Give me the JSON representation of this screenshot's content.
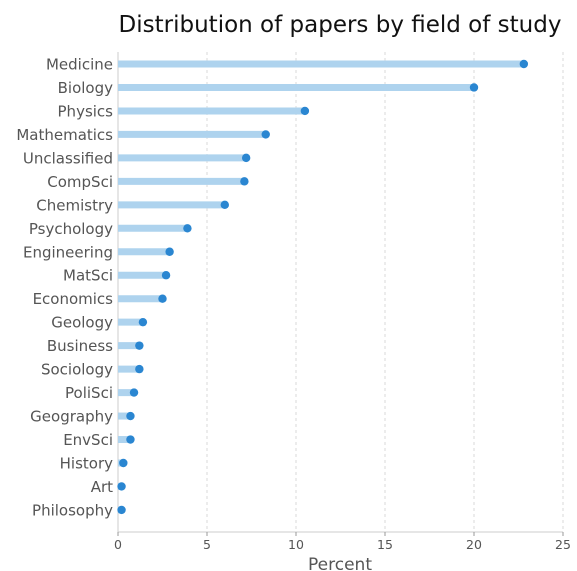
{
  "chart_data": {
    "type": "bar",
    "style": "lollipop-horizontal",
    "title": "Distribution of papers by field of study",
    "xlabel": "Percent",
    "ylabel": "",
    "xlim": [
      0,
      25
    ],
    "xticks": [
      0,
      5,
      10,
      15,
      20,
      25
    ],
    "grid": "vertical dashed",
    "categories": [
      "Medicine",
      "Biology",
      "Physics",
      "Mathematics",
      "Unclassified",
      "CompSci",
      "Chemistry",
      "Psychology",
      "Engineering",
      "MatSci",
      "Economics",
      "Geology",
      "Business",
      "Sociology",
      "PoliSci",
      "Geography",
      "EnvSci",
      "History",
      "Art",
      "Philosophy"
    ],
    "values": [
      22.8,
      20.0,
      10.5,
      8.3,
      7.2,
      7.1,
      6.0,
      3.9,
      2.9,
      2.7,
      2.5,
      1.4,
      1.2,
      1.2,
      0.9,
      0.7,
      0.7,
      0.3,
      0.2,
      0.2
    ],
    "colors": {
      "stem": "#aed3ee",
      "dot": "#2a86d1",
      "grid": "#d9d9d9",
      "axis": "#cccccc"
    }
  }
}
